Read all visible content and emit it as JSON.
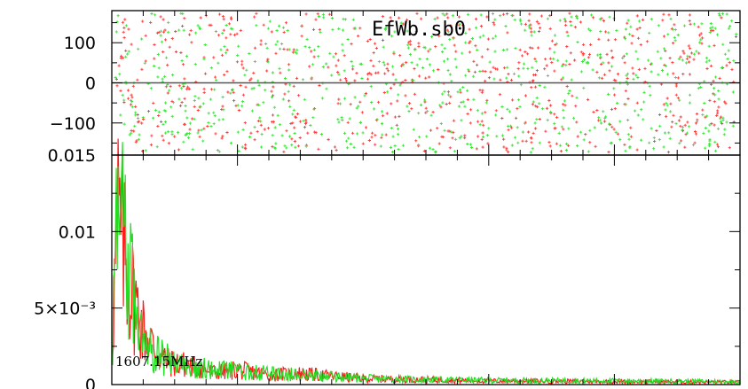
{
  "chart_data": [
    {
      "type": "scatter",
      "panel": "phase",
      "title": "EfWb.sb0",
      "ylim": [
        -180,
        180
      ],
      "y_ticks": [
        {
          "value": 100,
          "label": "100"
        },
        {
          "value": 0,
          "label": "0"
        },
        {
          "value": -100,
          "label": "−100"
        }
      ],
      "zero_line": true,
      "series": [
        {
          "color": "#ff3b3b",
          "distribution": "uniform",
          "count": 700
        },
        {
          "color": "#34e834",
          "distribution": "uniform",
          "count": 700
        }
      ],
      "grid": false
    },
    {
      "type": "line",
      "panel": "amplitude",
      "annotation": "1607.15MHz",
      "ylim": [
        0,
        0.015
      ],
      "y_ticks": [
        {
          "value": 0.015,
          "label": "0.015"
        },
        {
          "value": 0.01,
          "label": "0.01"
        },
        {
          "value": 0.005,
          "label": "5×10⁻³"
        },
        {
          "value": 0,
          "label": "0"
        }
      ],
      "series": [
        {
          "color": "#ff1a1a",
          "envelope_x": [
            0,
            0.005,
            0.01,
            0.015,
            0.02,
            0.03,
            0.05,
            0.07,
            0.09,
            0.12,
            0.16,
            0.2,
            0.25,
            0.3,
            0.4,
            0.5,
            0.6,
            0.8,
            1.0
          ],
          "envelope_y": [
            0.003,
            0.009,
            0.0135,
            0.012,
            0.0105,
            0.008,
            0.0045,
            0.0028,
            0.0018,
            0.0016,
            0.001,
            0.0012,
            0.0008,
            0.0009,
            0.0005,
            0.0004,
            0.0003,
            0.00025,
            0.0002
          ]
        },
        {
          "color": "#22dd22",
          "envelope_x": [
            0,
            0.005,
            0.01,
            0.015,
            0.02,
            0.03,
            0.05,
            0.07,
            0.09,
            0.12,
            0.16,
            0.2,
            0.25,
            0.3,
            0.4,
            0.5,
            0.6,
            0.8,
            1.0
          ],
          "envelope_y": [
            0.002,
            0.0095,
            0.014,
            0.0125,
            0.0115,
            0.0085,
            0.005,
            0.0026,
            0.002,
            0.0015,
            0.0012,
            0.0011,
            0.0009,
            0.0008,
            0.0005,
            0.0004,
            0.00035,
            0.0003,
            0.00025
          ]
        }
      ],
      "grid": false
    }
  ]
}
